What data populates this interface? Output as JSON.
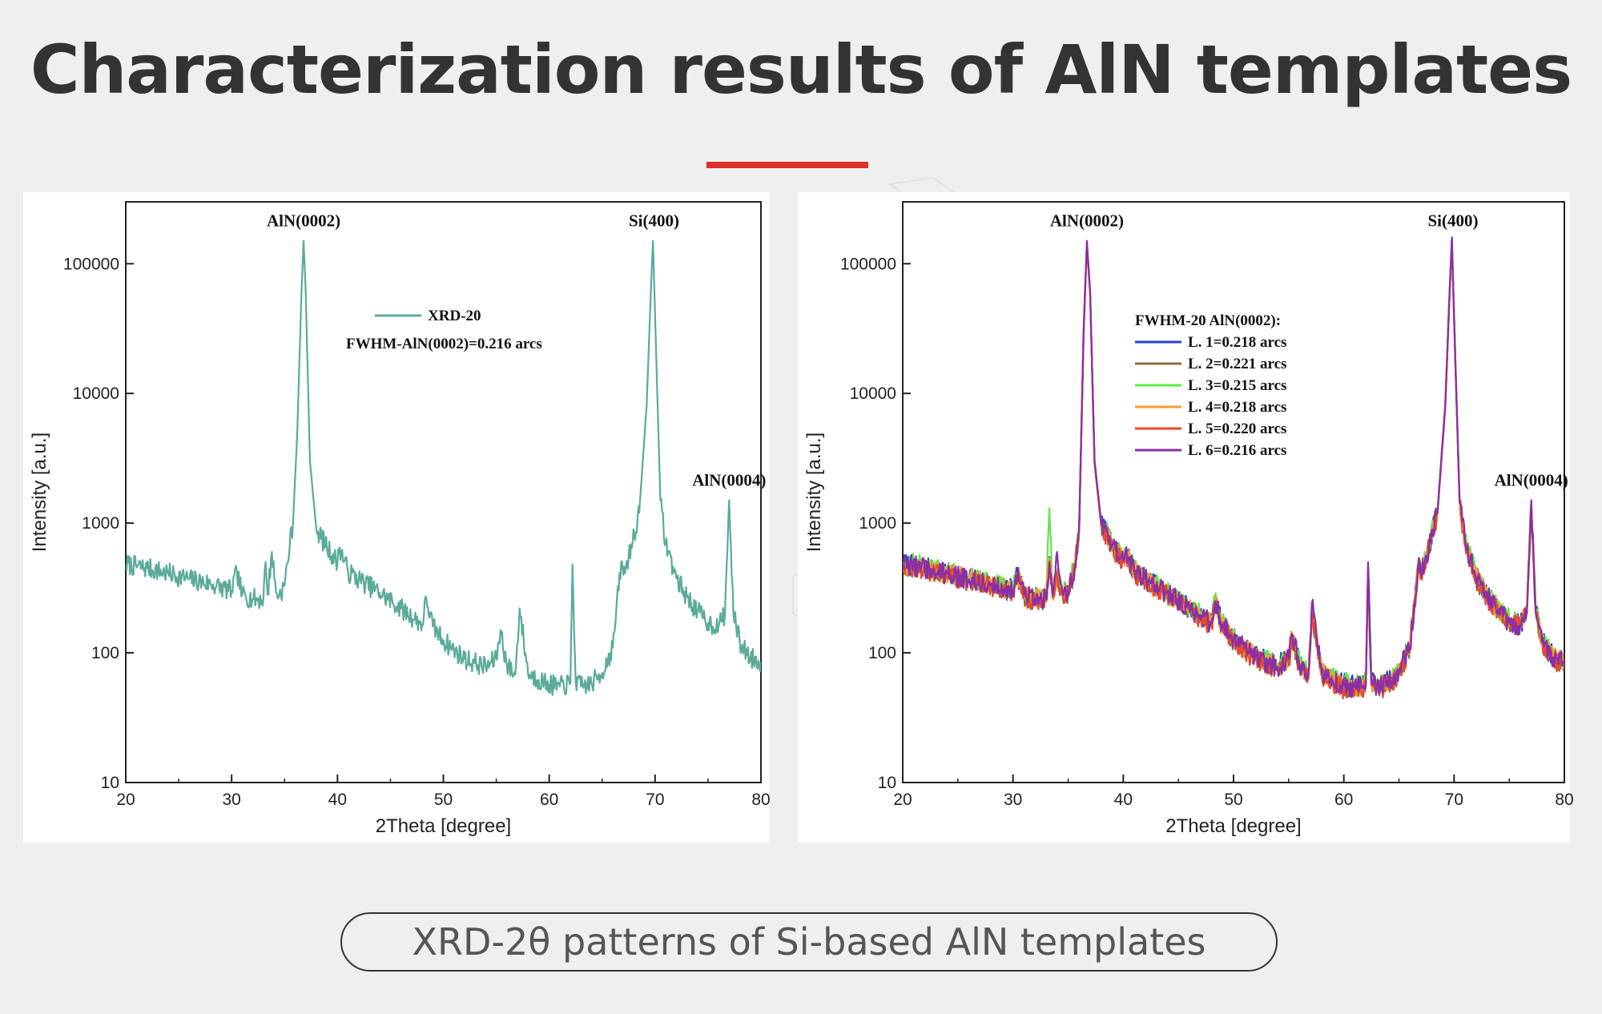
{
  "title": "Characterization results of AlN templates",
  "accent_color": "#e0302a",
  "caption": "XRD-2θ patterns of Si-based AlN templates",
  "chart_data": [
    {
      "type": "line",
      "xlabel": "2Theta [degree]",
      "ylabel": "Intensity [a.u.]",
      "xlim": [
        20,
        80
      ],
      "ylim": [
        10,
        300000
      ],
      "yscale": "log",
      "xticks": [
        20,
        30,
        40,
        50,
        60,
        70,
        80
      ],
      "yticks": [
        10,
        100,
        1000,
        10000,
        100000
      ],
      "grid": false,
      "legend": {
        "position": "top-center",
        "entries": [
          "XRD-20"
        ],
        "note": "FWHM-AlN(0002)=0.216 arcs"
      },
      "annotations": [
        {
          "text": "AlN(0002)",
          "x": 36.8,
          "y": 150000
        },
        {
          "text": "Si(400)",
          "x": 69.9,
          "y": 150000
        },
        {
          "text": "AlN(0004)",
          "x": 77.0,
          "y": 1500
        }
      ],
      "series": [
        {
          "name": "XRD-20",
          "color": "#5aab98",
          "x": [
            20.0,
            22,
            24,
            26,
            28,
            30,
            30.5,
            31,
            32,
            33,
            33.2,
            33.4,
            33.8,
            34.2,
            34.5,
            35.0,
            35.5,
            35.8,
            36.2,
            36.6,
            36.8,
            37.0,
            37.4,
            38,
            39,
            40,
            40.2,
            41,
            42,
            44,
            46,
            48,
            48.4,
            49,
            50,
            51,
            52,
            54,
            55,
            55.4,
            56,
            56.8,
            57.2,
            58,
            59,
            60,
            61,
            62.0,
            62.2,
            62.5,
            63,
            64,
            65,
            66,
            66.8,
            67.0,
            67.5,
            68.5,
            69.2,
            69.6,
            69.8,
            70.1,
            70.5,
            71,
            72,
            73,
            74,
            75,
            76,
            76.6,
            77.0,
            77.4,
            78,
            79,
            80
          ],
          "y": [
            480,
            450,
            410,
            370,
            340,
            300,
            420,
            280,
            260,
            260,
            500,
            280,
            600,
            290,
            280,
            330,
            700,
            1000,
            5000,
            60000,
            150000,
            60000,
            3000,
            900,
            650,
            500,
            650,
            420,
            370,
            290,
            220,
            165,
            260,
            160,
            125,
            105,
            90,
            78,
            90,
            150,
            80,
            68,
            220,
            70,
            62,
            57,
            55,
            58,
            480,
            60,
            55,
            58,
            70,
            110,
            500,
            400,
            550,
            1200,
            8000,
            60000,
            150000,
            20000,
            1500,
            700,
            380,
            270,
            210,
            170,
            160,
            200,
            1500,
            200,
            120,
            92,
            85
          ]
        }
      ]
    },
    {
      "type": "line",
      "xlabel": "2Theta [degree]",
      "ylabel": "Intensity [a.u.]",
      "xlim": [
        20,
        80
      ],
      "ylim": [
        10,
        300000
      ],
      "yscale": "log",
      "xticks": [
        20,
        30,
        40,
        50,
        60,
        70,
        80
      ],
      "yticks": [
        10,
        100,
        1000,
        10000,
        100000
      ],
      "grid": false,
      "legend": {
        "position": "top-center",
        "title": "FWHM-20 AlN(0002):",
        "entries": [
          "L. 1=0.218 arcs",
          "L. 2=0.221 arcs",
          "L. 3=0.215 arcs",
          "L. 4=0.218 arcs",
          "L. 5=0.220 arcs",
          "L. 6=0.216 arcs"
        ]
      },
      "annotations": [
        {
          "text": "AlN(0002)",
          "x": 36.7,
          "y": 150000
        },
        {
          "text": "Si(400)",
          "x": 69.9,
          "y": 150000
        },
        {
          "text": "AlN(0004)",
          "x": 77.0,
          "y": 1500
        }
      ],
      "x": [
        20.0,
        22,
        24,
        26,
        28,
        30,
        30.4,
        31,
        32,
        33,
        33.3,
        33.6,
        34.0,
        34.5,
        35.0,
        35.3,
        35.6,
        36.0,
        36.4,
        36.7,
        37.0,
        37.4,
        38,
        39,
        40,
        40.2,
        41,
        42,
        44,
        46,
        48,
        48.3,
        49,
        50,
        51,
        52,
        54,
        55,
        55.3,
        56,
        56.8,
        57.1,
        58,
        59,
        60,
        61,
        62.0,
        62.2,
        62.5,
        63,
        64,
        65,
        66,
        66.8,
        67.0,
        67.5,
        68.5,
        69.2,
        69.6,
        69.8,
        70.1,
        70.5,
        71,
        72,
        73,
        74,
        75,
        76,
        76.6,
        77.0,
        77.4,
        78,
        79,
        80
      ],
      "series": [
        {
          "name": "L. 1=0.218 arcs",
          "color": "#2b3fd8",
          "values": [
            490,
            455,
            415,
            375,
            345,
            305,
            400,
            285,
            265,
            265,
            550,
            280,
            420,
            290,
            300,
            380,
            450,
            900,
            30000,
            145000,
            60000,
            3000,
            1000,
            680,
            520,
            600,
            430,
            370,
            290,
            220,
            170,
            250,
            165,
            130,
            110,
            95,
            80,
            92,
            140,
            82,
            68,
            220,
            72,
            63,
            58,
            55,
            58,
            450,
            60,
            56,
            60,
            72,
            115,
            520,
            420,
            560,
            1250,
            8200,
            62000,
            155000,
            20000,
            1500,
            720,
            390,
            280,
            215,
            175,
            165,
            210,
            1480,
            210,
            125,
            94,
            86
          ]
        },
        {
          "name": "L. 2=0.221 arcs",
          "color": "#8b6a3e",
          "values": [
            470,
            445,
            405,
            365,
            335,
            295,
            390,
            275,
            255,
            255,
            520,
            270,
            400,
            280,
            290,
            360,
            440,
            880,
            28000,
            140000,
            58000,
            2900,
            960,
            660,
            500,
            580,
            415,
            360,
            285,
            215,
            165,
            245,
            160,
            125,
            105,
            90,
            77,
            88,
            135,
            78,
            65,
            210,
            69,
            60,
            55,
            53,
            56,
            430,
            57,
            53,
            57,
            69,
            110,
            500,
            405,
            540,
            1200,
            7800,
            59000,
            148000,
            19000,
            1450,
            700,
            375,
            268,
            208,
            170,
            160,
            205,
            1450,
            205,
            120,
            90,
            82
          ]
        },
        {
          "name": "L. 3=0.215 arcs",
          "color": "#5ee84a",
          "values": [
            500,
            465,
            420,
            380,
            350,
            310,
            410,
            290,
            270,
            270,
            1300,
            285,
            430,
            295,
            305,
            390,
            460,
            920,
            31000,
            148000,
            61000,
            3100,
            1020,
            690,
            530,
            610,
            440,
            375,
            295,
            225,
            172,
            255,
            168,
            132,
            112,
            96,
            81,
            94,
            142,
            83,
            69,
            225,
            73,
            64,
            59,
            56,
            59,
            455,
            61,
            57,
            61,
            73,
            117,
            525,
            425,
            565,
            1260,
            8300,
            63000,
            156000,
            20500,
            1520,
            725,
            395,
            282,
            218,
            190,
            168,
            212,
            1490,
            212,
            126,
            95,
            87
          ]
        },
        {
          "name": "L. 4=0.218 arcs",
          "color": "#f2a033",
          "values": [
            485,
            450,
            410,
            370,
            340,
            300,
            395,
            280,
            260,
            260,
            540,
            275,
            410,
            285,
            295,
            370,
            445,
            890,
            29500,
            144000,
            59500,
            2950,
            990,
            670,
            510,
            590,
            425,
            365,
            288,
            218,
            168,
            248,
            163,
            128,
            108,
            93,
            79,
            90,
            138,
            80,
            67,
            215,
            71,
            62,
            57,
            54,
            57,
            445,
            59,
            55,
            59,
            71,
            113,
            510,
            412,
            550,
            1230,
            8000,
            61000,
            152000,
            19800,
            1480,
            710,
            382,
            275,
            212,
            173,
            163,
            208,
            1470,
            208,
            123,
            92,
            84
          ]
        },
        {
          "name": "L. 5=0.220 arcs",
          "color": "#e84a2a",
          "values": [
            460,
            440,
            400,
            360,
            330,
            290,
            385,
            270,
            250,
            250,
            510,
            265,
            395,
            275,
            285,
            355,
            435,
            870,
            27500,
            139000,
            57500,
            2850,
            950,
            650,
            495,
            575,
            410,
            355,
            280,
            212,
            162,
            240,
            157,
            122,
            102,
            88,
            75,
            86,
            132,
            76,
            63,
            205,
            67,
            58,
            53,
            51,
            54,
            425,
            56,
            52,
            56,
            68,
            108,
            495,
            400,
            535,
            1190,
            7700,
            58500,
            146000,
            18800,
            1430,
            690,
            370,
            265,
            205,
            168,
            158,
            202,
            1440,
            202,
            118,
            88,
            80
          ]
        },
        {
          "name": "L. 6=0.216 arcs",
          "color": "#8a2fa8",
          "values": [
            480,
            450,
            410,
            370,
            340,
            300,
            420,
            280,
            260,
            260,
            500,
            280,
            600,
            290,
            300,
            370,
            450,
            1000,
            30000,
            150000,
            60000,
            3000,
            1000,
            670,
            510,
            600,
            430,
            370,
            290,
            220,
            168,
            250,
            165,
            128,
            108,
            92,
            78,
            90,
            140,
            80,
            68,
            240,
            70,
            61,
            56,
            54,
            57,
            500,
            59,
            55,
            59,
            72,
            112,
            540,
            410,
            560,
            1240,
            8100,
            62000,
            160000,
            20000,
            1500,
            710,
            385,
            275,
            212,
            172,
            162,
            207,
            1500,
            207,
            122,
            92,
            84
          ]
        }
      ]
    }
  ]
}
